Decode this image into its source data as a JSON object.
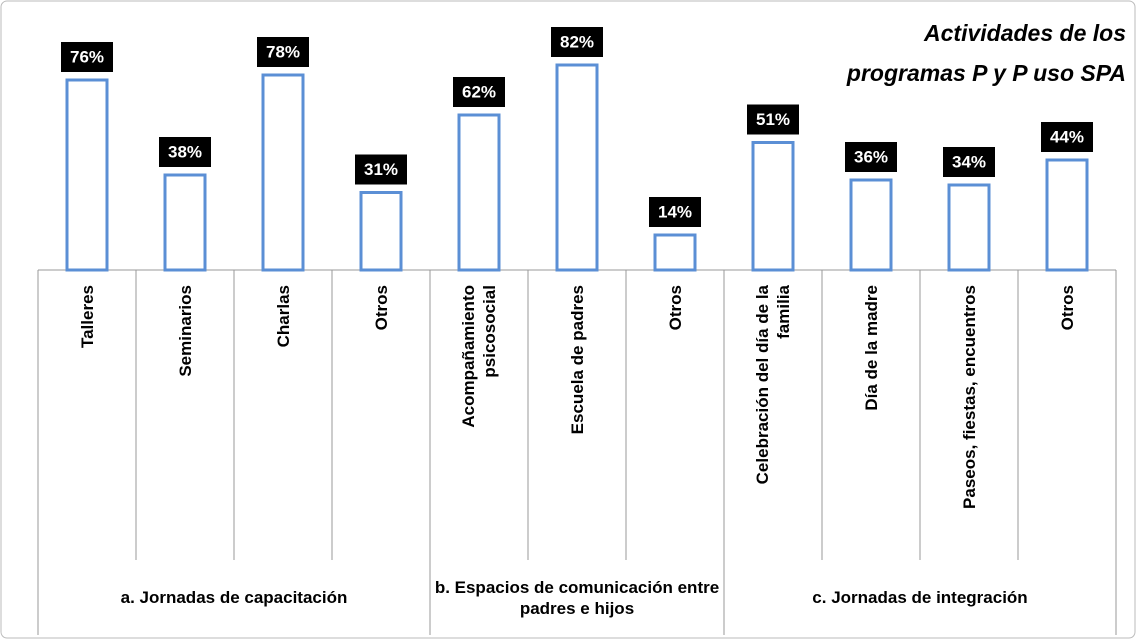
{
  "chart_data": {
    "type": "bar",
    "title": [
      "Actividades de los",
      "programas P y P uso SPA"
    ],
    "categories": [
      "Talleres",
      "Seminarios",
      "Charlas",
      "Otros",
      "Acompañamiento\npsicosocial",
      "Escuela de padres",
      "Otros",
      "Celebración del día de la\nfamilia",
      "Día de la madre",
      "Paseos, fiestas, encuentros",
      "Otros"
    ],
    "groups": [
      {
        "label": "a.  Jornadas de capacitación",
        "size": 4
      },
      {
        "label": "b. Espacios de comunicación entre padres e hijos",
        "size": 3
      },
      {
        "label": "c.  Jornadas de integración",
        "size": 4
      }
    ],
    "values": [
      76,
      38,
      78,
      31,
      62,
      82,
      14,
      51,
      36,
      34,
      44
    ],
    "value_labels": [
      "76%",
      "38%",
      "78%",
      "31%",
      "62%",
      "82%",
      "14%",
      "51%",
      "36%",
      "34%",
      "44%"
    ],
    "color": "#5b8fd5"
  }
}
